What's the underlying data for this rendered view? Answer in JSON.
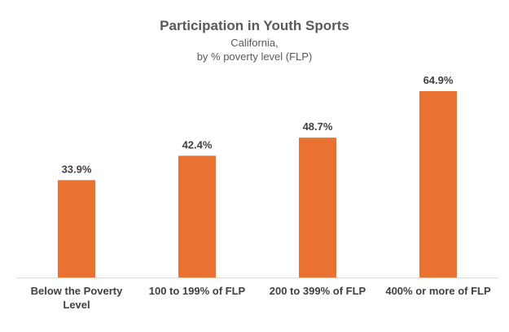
{
  "chart_data": {
    "type": "bar",
    "title": "Participation in Youth Sports",
    "subtitle_lines": [
      "California,",
      "by % poverty level (FLP)"
    ],
    "categories": [
      [
        "Below the Poverty",
        "Level"
      ],
      [
        "100 to 199% of FLP"
      ],
      [
        "200 to 399% of FLP"
      ],
      [
        "400% or more of FLP"
      ]
    ],
    "values": [
      33.9,
      42.4,
      48.7,
      64.9
    ],
    "data_labels": [
      "33.9%",
      "42.4%",
      "48.7%",
      "64.9%"
    ],
    "ylim": [
      0,
      70
    ],
    "grid": false,
    "legend": "none",
    "xlabel": "",
    "ylabel": "",
    "colors": {
      "bar": "#E97132",
      "axis": "#D9D9D9",
      "label": "#404040",
      "title": "#595959"
    }
  }
}
